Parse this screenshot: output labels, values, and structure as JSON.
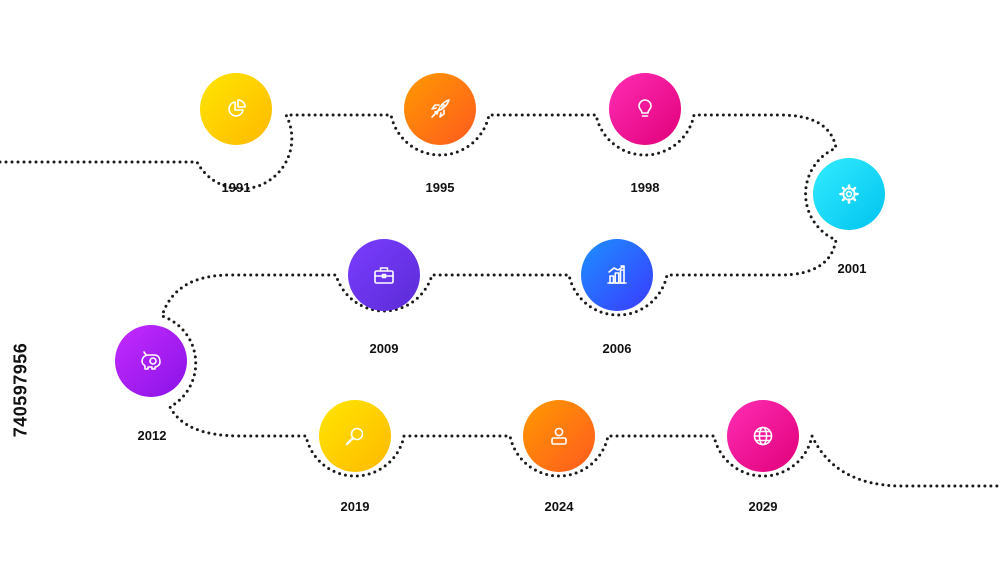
{
  "colors": {
    "path": "#1a1a1a",
    "label": "#111111",
    "yellow": [
      "#ffe600",
      "#ffb800"
    ],
    "orange": [
      "#ff9a00",
      "#ff5a1f"
    ],
    "magenta": [
      "#ff2db4",
      "#e0007a"
    ],
    "cyan": [
      "#33ecff",
      "#00c3ef"
    ],
    "blue": [
      "#1d90ff",
      "#3a3aff"
    ],
    "violet": [
      "#7a3dff",
      "#5b2bd6"
    ],
    "purple": [
      "#c42bff",
      "#8a12e6"
    ]
  },
  "milestones": [
    {
      "year": "1991",
      "icon": "pie-chart-icon",
      "color": "yellow"
    },
    {
      "year": "1995",
      "icon": "rocket-icon",
      "color": "orange"
    },
    {
      "year": "1998",
      "icon": "lightbulb-icon",
      "color": "magenta"
    },
    {
      "year": "2001",
      "icon": "gear-icon",
      "color": "cyan"
    },
    {
      "year": "2006",
      "icon": "bar-chart-icon",
      "color": "blue"
    },
    {
      "year": "2009",
      "icon": "briefcase-icon",
      "color": "violet"
    },
    {
      "year": "2012",
      "icon": "piggy-bank-icon",
      "color": "purple"
    },
    {
      "year": "2019",
      "icon": "magnifier-icon",
      "color": "yellow"
    },
    {
      "year": "2024",
      "icon": "user-icon",
      "color": "orange"
    },
    {
      "year": "2029",
      "icon": "globe-icon",
      "color": "magenta"
    }
  ],
  "watermark": "740597956"
}
